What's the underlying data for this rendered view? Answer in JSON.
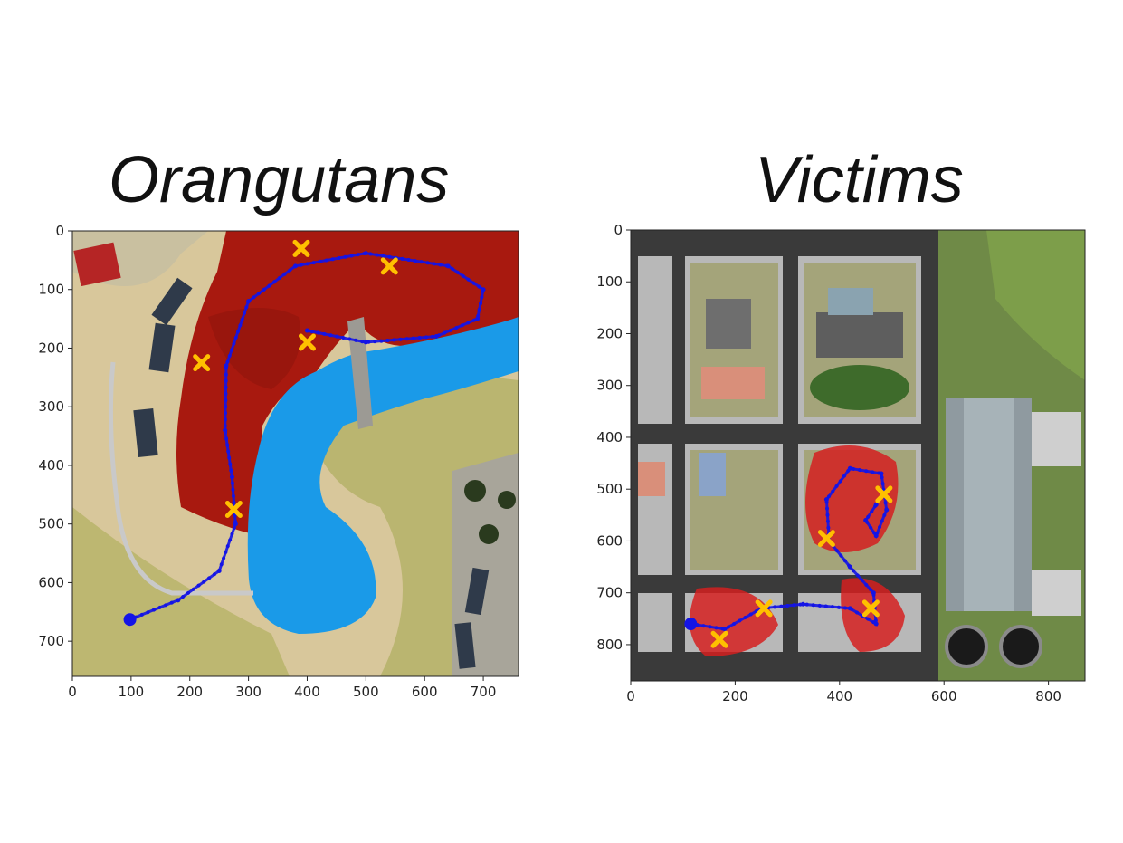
{
  "panels": [
    {
      "title": "Orangutans",
      "xlim": [
        0,
        760
      ],
      "ylim": [
        0,
        760
      ],
      "x_ticks": [
        0,
        100,
        200,
        300,
        400,
        500,
        600,
        700
      ],
      "y_ticks": [
        0,
        100,
        200,
        300,
        400,
        500,
        600,
        700
      ],
      "path": [
        [
          98,
          663
        ],
        [
          180,
          630
        ],
        [
          250,
          580
        ],
        [
          278,
          500
        ],
        [
          272,
          420
        ],
        [
          260,
          340
        ],
        [
          262,
          230
        ],
        [
          300,
          120
        ],
        [
          380,
          60
        ],
        [
          500,
          38
        ],
        [
          640,
          60
        ],
        [
          700,
          100
        ],
        [
          690,
          150
        ],
        [
          620,
          180
        ],
        [
          500,
          190
        ],
        [
          400,
          170
        ]
      ],
      "start_point": [
        98,
        663
      ],
      "targets": [
        [
          390,
          30
        ],
        [
          540,
          60
        ],
        [
          400,
          190
        ],
        [
          220,
          225
        ],
        [
          275,
          475
        ]
      ],
      "colors": {
        "path": "#1414e6",
        "target": "#ffc000",
        "vegetation": "#a8190f",
        "water": "#1a9ae8",
        "ground": "#d9c79a"
      }
    },
    {
      "title": "Victims",
      "xlim": [
        0,
        870
      ],
      "ylim": [
        0,
        870
      ],
      "x_ticks": [
        0,
        200,
        400,
        600,
        800
      ],
      "y_ticks": [
        0,
        100,
        200,
        300,
        400,
        500,
        600,
        700,
        800
      ],
      "path": [
        [
          115,
          760
        ],
        [
          180,
          770
        ],
        [
          250,
          730
        ],
        [
          330,
          722
        ],
        [
          420,
          730
        ],
        [
          470,
          760
        ],
        [
          465,
          700
        ],
        [
          420,
          650
        ],
        [
          380,
          600
        ],
        [
          375,
          520
        ],
        [
          420,
          460
        ],
        [
          480,
          470
        ],
        [
          490,
          540
        ],
        [
          470,
          590
        ],
        [
          450,
          560
        ],
        [
          470,
          530
        ]
      ],
      "start_point": [
        115,
        760
      ],
      "targets": [
        [
          170,
          790
        ],
        [
          255,
          730
        ],
        [
          375,
          595
        ],
        [
          485,
          510
        ],
        [
          460,
          730
        ]
      ],
      "colors": {
        "path": "#1414e6",
        "target": "#ffc000",
        "debris": "#d52020",
        "road": "#3a3a3a",
        "grass": "#8a9a55"
      }
    }
  ]
}
